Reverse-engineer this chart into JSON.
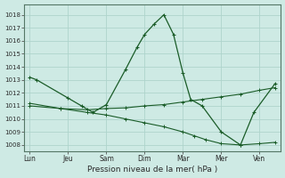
{
  "background_color": "#ceeae4",
  "grid_color": "#aed4cc",
  "line_color": "#1a5c28",
  "xlabel": "Pression niveau de la mer( hPa )",
  "ylim": [
    1007.5,
    1018.8
  ],
  "yticks": [
    1008,
    1009,
    1010,
    1011,
    1012,
    1013,
    1014,
    1015,
    1016,
    1017,
    1018
  ],
  "xtick_labels": [
    "Lun",
    "Jeu",
    "Sam",
    "Dim",
    "Mar",
    "Mer",
    "Ven"
  ],
  "xtick_positions": [
    0,
    1,
    2,
    3,
    4,
    5,
    6
  ],
  "xlim": [
    -0.15,
    6.55
  ],
  "series1_x": [
    0.0,
    0.18,
    1.0,
    1.35,
    1.65,
    2.0,
    2.5,
    2.8,
    3.0,
    3.25,
    3.5,
    3.75,
    4.0,
    4.2,
    4.5,
    5.0,
    5.5,
    5.85,
    6.4
  ],
  "series1_y": [
    1013.2,
    1013.0,
    1011.6,
    1011.0,
    1010.5,
    1011.1,
    1013.8,
    1015.5,
    1016.5,
    1017.3,
    1018.0,
    1016.5,
    1013.5,
    1011.5,
    1011.0,
    1009.0,
    1008.0,
    1010.5,
    1012.7
  ],
  "series2_x": [
    0.0,
    0.8,
    1.5,
    2.0,
    2.5,
    3.0,
    3.5,
    4.0,
    4.5,
    5.0,
    5.5,
    6.0,
    6.4
  ],
  "series2_y": [
    1011.0,
    1010.8,
    1010.7,
    1010.8,
    1010.85,
    1011.0,
    1011.1,
    1011.3,
    1011.5,
    1011.7,
    1011.9,
    1012.2,
    1012.4
  ],
  "series3_x": [
    0.0,
    0.8,
    1.5,
    2.0,
    2.5,
    3.0,
    3.5,
    4.0,
    4.3,
    4.6,
    5.0,
    5.5,
    6.0,
    6.4
  ],
  "series3_y": [
    1011.2,
    1010.8,
    1010.5,
    1010.3,
    1010.0,
    1009.7,
    1009.4,
    1009.0,
    1008.7,
    1008.4,
    1008.1,
    1008.0,
    1008.1,
    1008.2
  ]
}
